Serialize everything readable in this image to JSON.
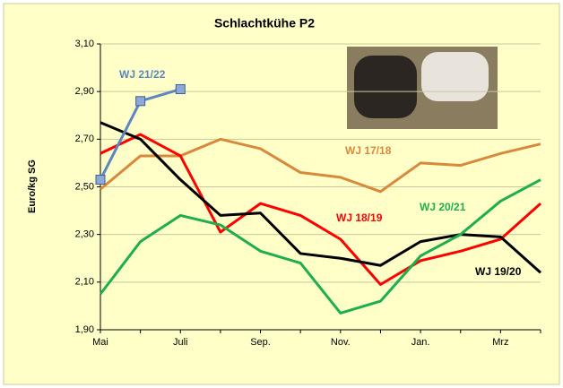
{
  "chart_data": {
    "type": "line",
    "title": "Schlachtkühe P2",
    "y_label": "Euro/kg SG",
    "categories": [
      "Mai",
      null,
      "Juli",
      null,
      "Sep.",
      null,
      "Nov.",
      null,
      "Jan.",
      null,
      "Mrz",
      null
    ],
    "ylim": [
      1.9,
      3.1
    ],
    "yticks": [
      {
        "value": 1.9,
        "label": "1,90"
      },
      {
        "value": 2.1,
        "label": "2,10"
      },
      {
        "value": 2.3,
        "label": "2,30"
      },
      {
        "value": 2.5,
        "label": "2,50"
      },
      {
        "value": 2.7,
        "label": "2,70"
      },
      {
        "value": 2.9,
        "label": "2,90"
      },
      {
        "value": 3.1,
        "label": "3,10"
      }
    ],
    "grid": true,
    "series": [
      {
        "name": "WJ 17/18",
        "color": "#d9893b",
        "values": [
          2.49,
          2.63,
          2.63,
          2.7,
          2.66,
          2.56,
          2.54,
          2.48,
          2.6,
          2.59,
          2.64,
          2.68
        ]
      },
      {
        "name": "WJ 18/19",
        "color": "#ff0000",
        "values": [
          2.64,
          2.72,
          2.63,
          2.31,
          2.43,
          2.38,
          2.28,
          2.09,
          2.19,
          2.23,
          2.28,
          2.43
        ]
      },
      {
        "name": "WJ 19/20",
        "color": "#000000",
        "values": [
          2.77,
          2.7,
          2.53,
          2.38,
          2.39,
          2.22,
          2.2,
          2.17,
          2.27,
          2.3,
          2.29,
          2.14
        ]
      },
      {
        "name": "WJ 20/21",
        "color": "#1fae4f",
        "values": [
          2.05,
          2.27,
          2.38,
          2.34,
          2.23,
          2.18,
          1.97,
          2.02,
          2.21,
          2.3,
          2.44,
          2.53
        ]
      },
      {
        "name": "WJ 21/22",
        "color": "#5b86c0",
        "marker": "square",
        "values": [
          2.53,
          2.86,
          2.91,
          null,
          null,
          null,
          null,
          null,
          null,
          null,
          null,
          null
        ]
      }
    ]
  }
}
